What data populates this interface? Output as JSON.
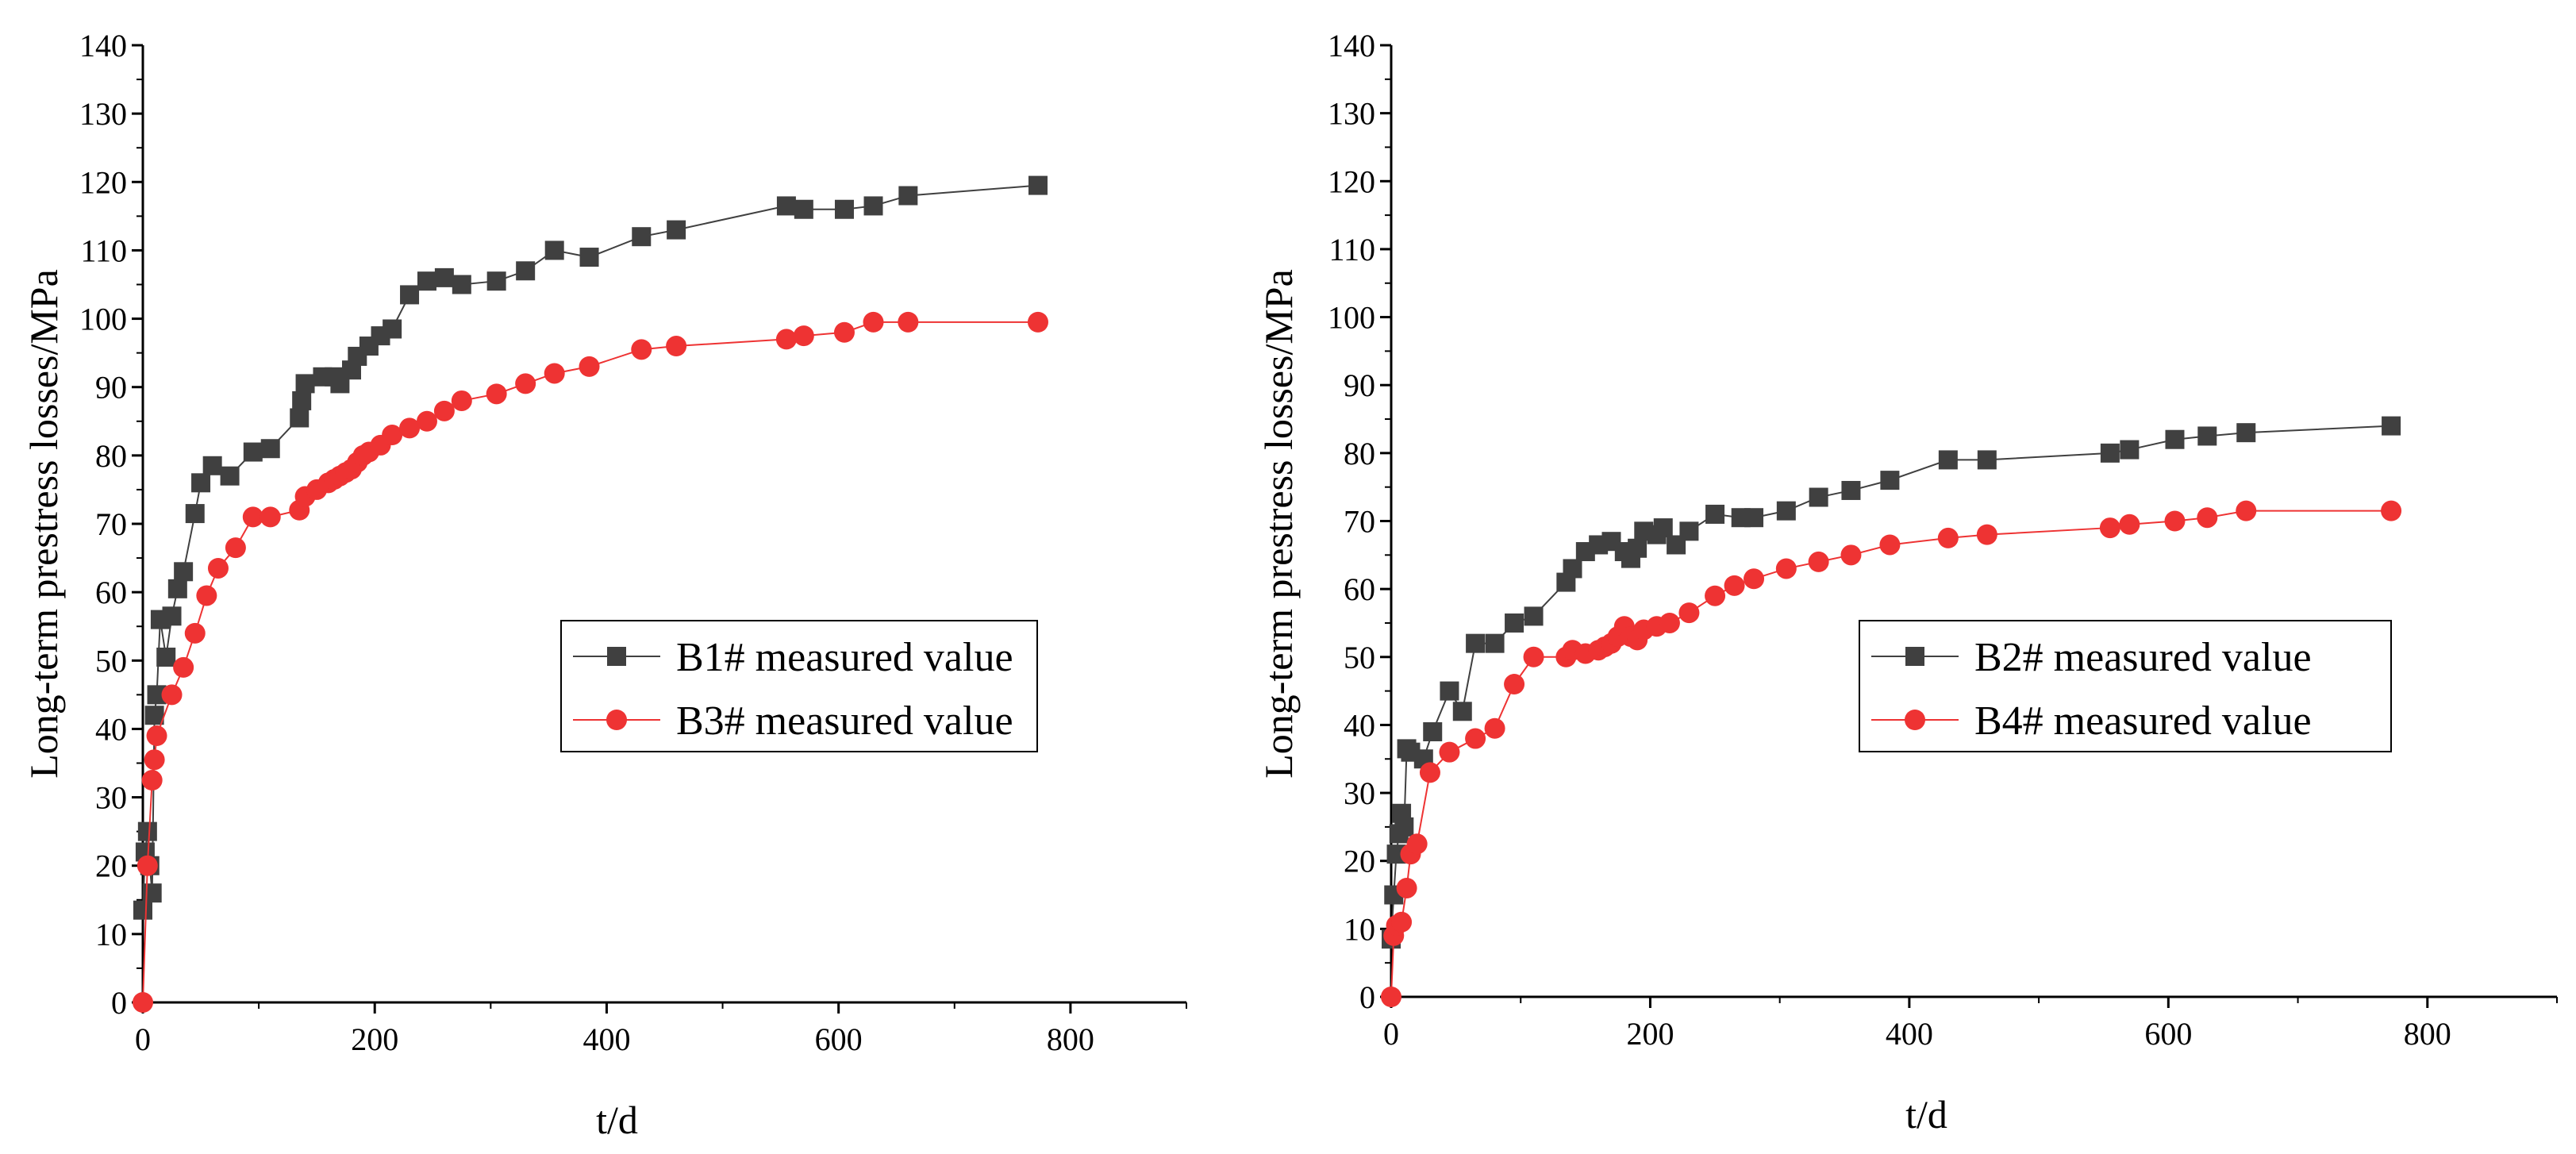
{
  "chart_data": [
    {
      "type": "scatter",
      "xlabel": "t/d",
      "ylabel": "Long-term prestress losses/MPa",
      "xlim": [
        0,
        900
      ],
      "ylim": [
        0,
        140
      ],
      "xticks": [
        "0",
        "200",
        "400",
        "600",
        "800"
      ],
      "yticks": [
        "0",
        "10",
        "20",
        "30",
        "40",
        "50",
        "60",
        "70",
        "80",
        "90",
        "100",
        "110",
        "120",
        "130",
        "140"
      ],
      "legend_position": "center-right",
      "series": [
        {
          "name": "B1# measured value",
          "marker": "square",
          "color": "#404040",
          "x": [
            0,
            2,
            4,
            6,
            8,
            10,
            12,
            15,
            20,
            25,
            30,
            35,
            45,
            50,
            60,
            75,
            95,
            110,
            135,
            137,
            140,
            155,
            165,
            170,
            180,
            185,
            195,
            205,
            215,
            230,
            245,
            260,
            275,
            305,
            330,
            355,
            385,
            430,
            460,
            555,
            570,
            605,
            630,
            660,
            772
          ],
          "y": [
            13.5,
            22,
            25,
            20,
            16,
            42,
            45,
            56,
            50.5,
            56.5,
            60.5,
            63,
            71.5,
            76,
            78.5,
            77,
            80.5,
            81,
            85.5,
            88,
            90.5,
            91.5,
            91.5,
            90.5,
            92.5,
            94.5,
            96,
            97.5,
            98.5,
            103.5,
            105.5,
            106,
            105,
            105.5,
            107,
            110,
            109,
            112,
            113,
            116.5,
            116,
            116,
            116.5,
            118,
            119.5
          ]
        },
        {
          "name": "B3# measured value",
          "marker": "circle",
          "color": "#ee3333",
          "x": [
            0,
            4,
            8,
            10,
            12,
            25,
            35,
            45,
            55,
            65,
            80,
            95,
            110,
            135,
            140,
            150,
            160,
            165,
            170,
            175,
            180,
            185,
            190,
            195,
            205,
            215,
            230,
            245,
            260,
            275,
            305,
            330,
            355,
            385,
            430,
            460,
            555,
            570,
            605,
            630,
            660,
            772
          ],
          "y": [
            0,
            20,
            32.5,
            35.5,
            39,
            45,
            49,
            54,
            59.5,
            63.5,
            66.5,
            71,
            71,
            72,
            74,
            75,
            76,
            76.5,
            77,
            77.5,
            78,
            79,
            80,
            80.5,
            81.5,
            83,
            84,
            85,
            86.5,
            88,
            89,
            90.5,
            92,
            93,
            95.5,
            96,
            97,
            97.5,
            98,
            99.5,
            99.5,
            99.5
          ]
        }
      ]
    },
    {
      "type": "scatter",
      "xlabel": "t/d",
      "ylabel": "Long-term prestress losses/MPa",
      "xlim": [
        0,
        900
      ],
      "ylim": [
        0,
        140
      ],
      "xticks": [
        "0",
        "200",
        "400",
        "600",
        "800"
      ],
      "yticks": [
        "0",
        "10",
        "20",
        "30",
        "40",
        "50",
        "60",
        "70",
        "80",
        "90",
        "100",
        "110",
        "120",
        "130",
        "140"
      ],
      "legend_position": "center-right",
      "series": [
        {
          "name": "B2# measured value",
          "marker": "square",
          "color": "#404040",
          "x": [
            0,
            2,
            4,
            6,
            8,
            10,
            12,
            15,
            25,
            32,
            45,
            55,
            65,
            80,
            95,
            110,
            135,
            140,
            150,
            160,
            170,
            180,
            185,
            190,
            195,
            205,
            210,
            220,
            230,
            250,
            270,
            280,
            305,
            330,
            355,
            385,
            430,
            460,
            555,
            570,
            605,
            630,
            660,
            772
          ],
          "y": [
            8.5,
            15,
            21,
            24,
            27,
            25,
            36.5,
            36,
            35,
            39,
            45,
            42,
            52,
            52,
            55,
            56,
            61,
            63,
            65.5,
            66.5,
            67,
            65.5,
            64.5,
            66,
            68.5,
            68,
            69,
            66.5,
            68.5,
            71,
            70.5,
            70.5,
            71.5,
            73.5,
            74.5,
            76,
            79,
            79,
            80,
            80.5,
            82,
            82.5,
            83,
            84
          ]
        },
        {
          "name": "B4# measured value",
          "marker": "circle",
          "color": "#ee3333",
          "x": [
            0,
            2,
            4,
            8,
            12,
            15,
            20,
            30,
            45,
            65,
            80,
            95,
            110,
            135,
            140,
            150,
            160,
            165,
            170,
            175,
            180,
            185,
            190,
            195,
            205,
            215,
            230,
            250,
            265,
            280,
            305,
            330,
            355,
            385,
            430,
            460,
            555,
            570,
            605,
            630,
            660,
            772
          ],
          "y": [
            0,
            9,
            10.5,
            11,
            16,
            21,
            22.5,
            33,
            36,
            38,
            39.5,
            46,
            50,
            50,
            51,
            50.5,
            51,
            51.5,
            52,
            53,
            54.5,
            53,
            52.5,
            54,
            54.5,
            55,
            56.5,
            59,
            60.5,
            61.5,
            63,
            64,
            65,
            66.5,
            67.5,
            68,
            69,
            69.5,
            70,
            70.5,
            71.5,
            71.5
          ]
        }
      ]
    }
  ]
}
